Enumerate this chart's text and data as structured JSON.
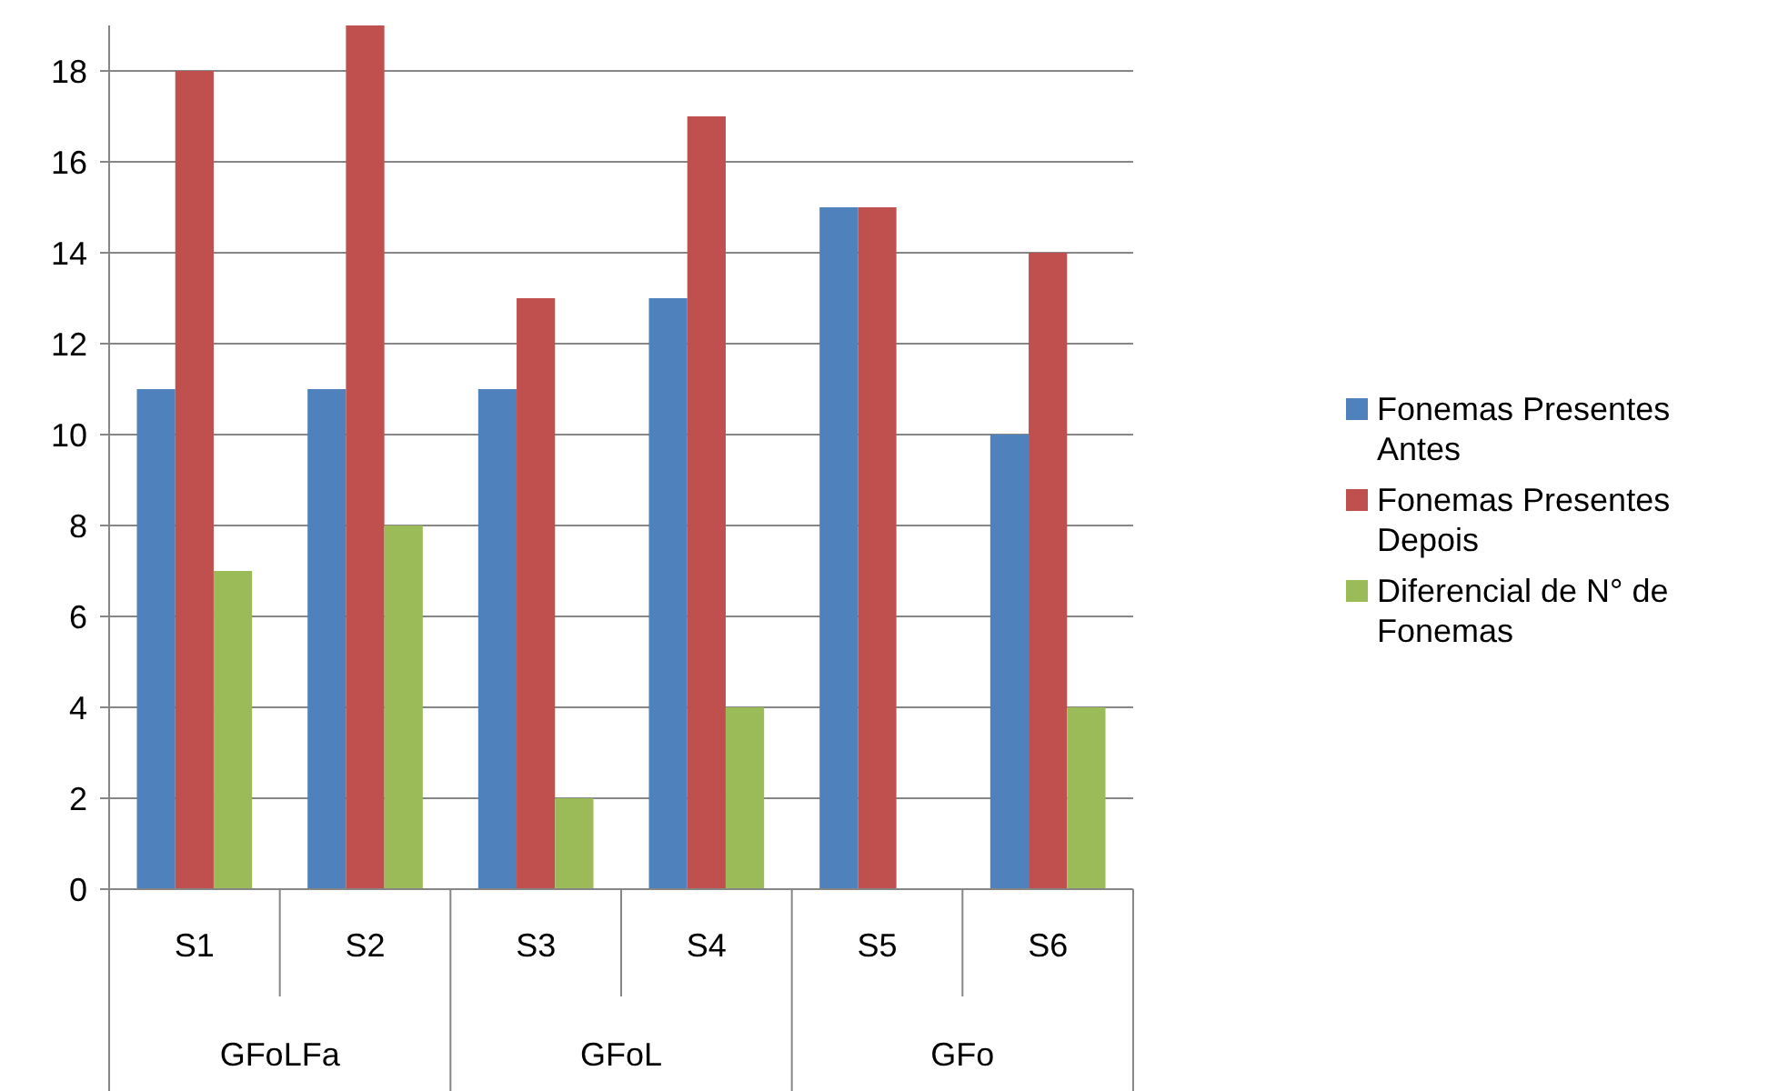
{
  "chart_data": {
    "type": "bar",
    "categories": [
      "S1",
      "S2",
      "S3",
      "S4",
      "S5",
      "S6"
    ],
    "series": [
      {
        "name": "Fonemas Presentes Antes",
        "color": "#4f81bd",
        "values": [
          11,
          11,
          11,
          13,
          15,
          10
        ]
      },
      {
        "name": "Fonemas Presentes Depois",
        "color": "#c0504d",
        "values": [
          18,
          19,
          13,
          17,
          15,
          14
        ]
      },
      {
        "name": "Diferencial de N° de Fonemas",
        "color": "#9bbb59",
        "values": [
          7,
          8,
          2,
          4,
          0,
          4
        ]
      }
    ],
    "annotations": [
      "GFoLFa",
      "GFoL",
      "GFo"
    ],
    "ylim": [
      0,
      19
    ],
    "yticks": [
      0,
      2,
      4,
      6,
      8,
      10,
      12,
      14,
      16,
      18
    ],
    "grid": "y",
    "legend": "right"
  }
}
